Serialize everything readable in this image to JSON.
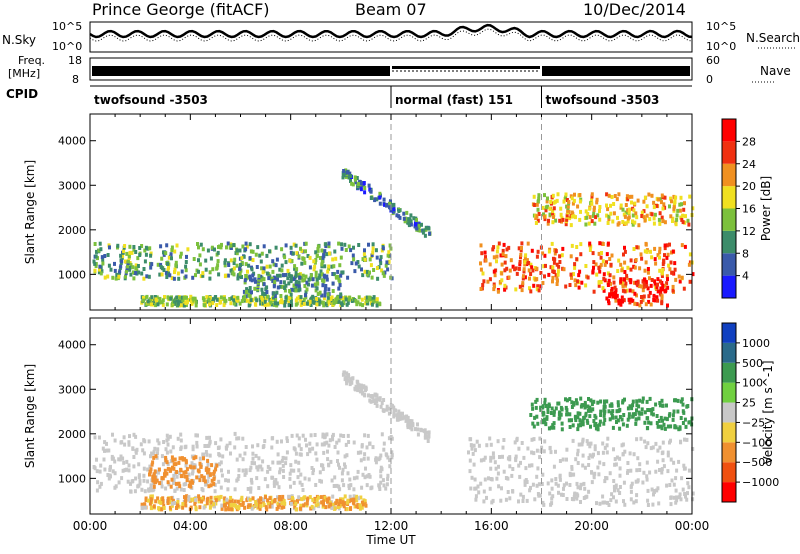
{
  "header": {
    "station": "Prince George (fitACF)",
    "beam": "Beam 07",
    "date": "10/Dec/2014"
  },
  "summary": {
    "left_label": "N.Sky",
    "left_ticks": [
      "10^5",
      "10^0"
    ],
    "right_label": "N.Search",
    "right_ticks": [
      "10^5",
      "10^0"
    ],
    "freq_label_1": "Freq.",
    "freq_label_2": "[MHz]",
    "freq_ticks": [
      "18",
      "8"
    ],
    "nave_label": "Nave",
    "nave_ticks": [
      "60",
      "0"
    ],
    "cpid_label": "CPID",
    "cpid_segments": [
      {
        "label": "twofsound -3503",
        "start_h": 0,
        "end_h": 12
      },
      {
        "label": "normal (fast) 151",
        "start_h": 12,
        "end_h": 18
      },
      {
        "label": "twofsound -3503",
        "start_h": 18,
        "end_h": 24
      }
    ]
  },
  "chart_data": [
    {
      "type": "heatmap",
      "title": "",
      "ylabel": "Slant Range [km]",
      "xlabel": "",
      "ylim": [
        200,
        4600
      ],
      "xlim_hours": [
        0,
        24
      ],
      "yticks": [
        1000,
        2000,
        3000,
        4000
      ],
      "colorbar": {
        "label": "Power [dB]",
        "ticks": [
          "4",
          "8",
          "12",
          "16",
          "20",
          "24",
          "28"
        ],
        "colors": [
          "#1a1aff",
          "#3a5aaa",
          "#3c8c6a",
          "#7cc03c",
          "#f0e020",
          "#f09020",
          "#f03010",
          "#ff0000"
        ]
      },
      "features": [
        {
          "name": "near-range band",
          "t_start": 0.1,
          "t_end": 12,
          "range_km": [
            900,
            1700
          ],
          "power_db": 12
        },
        {
          "name": "low band",
          "t_start": 2,
          "t_end": 11.5,
          "range_km": [
            300,
            500
          ],
          "power_db": 14
        },
        {
          "name": "mid band",
          "t_start": 6,
          "t_end": 10,
          "range_km": [
            500,
            1000
          ],
          "power_db": 10
        },
        {
          "name": "diagonal echo",
          "t_start": 10,
          "t_end": 13.5,
          "range_km": [
            1900,
            3300
          ],
          "power_db": 8
        },
        {
          "name": "evening oval",
          "t_start": 15.5,
          "t_end": 24,
          "range_km": [
            600,
            1700
          ],
          "power_db": 24
        },
        {
          "name": "far band",
          "t_start": 17.5,
          "t_end": 24,
          "range_km": [
            2100,
            2800
          ],
          "power_db": 20
        },
        {
          "name": "red patch",
          "t_start": 20.5,
          "t_end": 23,
          "range_km": [
            300,
            900
          ],
          "power_db": 28
        }
      ]
    },
    {
      "type": "heatmap",
      "title": "",
      "ylabel": "Slant Range [km]",
      "xlabel": "Time UT",
      "ylim": [
        200,
        4600
      ],
      "xlim_hours": [
        0,
        24
      ],
      "yticks": [
        1000,
        2000,
        3000,
        4000
      ],
      "xticks": [
        "00:00",
        "04:00",
        "08:00",
        "12:00",
        "16:00",
        "20:00",
        "00:00"
      ],
      "colorbar": {
        "label": "Velocity [m s^-1]",
        "ticks": [
          "1000",
          "500",
          "100",
          "25",
          "−25",
          "−100",
          "−500",
          "−1000"
        ],
        "colors": [
          "#1040c0",
          "#2a6a8a",
          "#3c9a50",
          "#70d040",
          "#c8c8c8",
          "#f0d040",
          "#f09030",
          "#f05010",
          "#ff0000"
        ]
      },
      "features": [
        {
          "name": "ground scatter",
          "t_start": 0,
          "t_end": 12,
          "range_km": [
            700,
            2000
          ],
          "velocity": 0
        },
        {
          "name": "westward flow",
          "t_start": 2.3,
          "t_end": 5,
          "range_km": [
            800,
            1500
          ],
          "velocity": -300
        },
        {
          "name": "low band",
          "t_start": 2,
          "t_end": 11,
          "range_km": [
            300,
            600
          ],
          "velocity": -100
        },
        {
          "name": "diagonal echo",
          "t_start": 10,
          "t_end": 13.5,
          "range_km": [
            1900,
            3300
          ],
          "velocity": 0
        },
        {
          "name": "evening ground scatter",
          "t_start": 15,
          "t_end": 24,
          "range_km": [
            400,
            1900
          ],
          "velocity": 0
        },
        {
          "name": "far band",
          "t_start": 17.5,
          "t_end": 24,
          "range_km": [
            2100,
            2800
          ],
          "velocity": 300
        }
      ]
    }
  ]
}
